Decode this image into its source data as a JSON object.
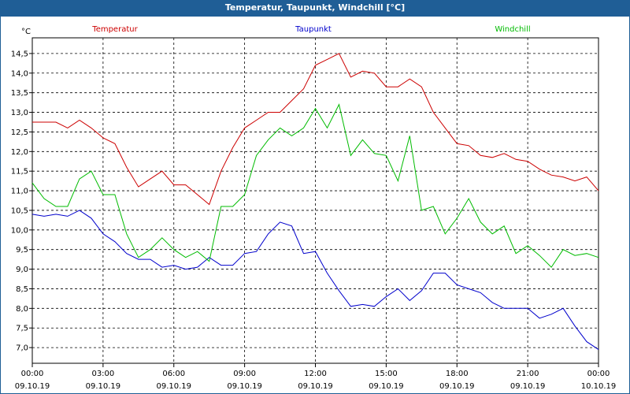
{
  "window": {
    "title": "Temperatur, Taupunkt, Windchill [°C]"
  },
  "chart_data": {
    "type": "line",
    "title": "Temperatur, Taupunkt, Windchill [°C]",
    "ylabel": "°C",
    "xlabel": "",
    "ylim": [
      6.6,
      14.9
    ],
    "xlim": [
      0,
      24
    ],
    "grid": true,
    "legend_placement": "top",
    "y_ticks": [
      "7,0",
      "7,5",
      "8,0",
      "8,5",
      "9,0",
      "9,5",
      "10,0",
      "10,5",
      "11,0",
      "11,5",
      "12,0",
      "12,5",
      "13,0",
      "13,5",
      "14,0",
      "14,5"
    ],
    "x_ticks": [
      {
        "time": "00:00",
        "date": "09.10.19"
      },
      {
        "time": "03:00",
        "date": "09.10.19"
      },
      {
        "time": "06:00",
        "date": "09.10.19"
      },
      {
        "time": "09:00",
        "date": "09.10.19"
      },
      {
        "time": "12:00",
        "date": "09.10.19"
      },
      {
        "time": "15:00",
        "date": "09.10.19"
      },
      {
        "time": "18:00",
        "date": "09.10.19"
      },
      {
        "time": "21:00",
        "date": "09.10.19"
      },
      {
        "time": "00:00",
        "date": "10.10.19"
      }
    ],
    "x_unit_note": "hours",
    "series": [
      {
        "name": "Temperatur",
        "color": "#cc0000",
        "x": [
          0,
          0.5,
          1,
          1.5,
          2,
          2.5,
          3,
          3.5,
          4,
          4.5,
          5,
          5.5,
          6,
          6.5,
          7,
          7.5,
          8,
          8.5,
          9,
          9.5,
          10,
          10.5,
          11,
          11.5,
          12,
          12.5,
          13,
          13.5,
          14,
          14.5,
          15,
          15.5,
          16,
          16.5,
          17,
          17.5,
          18,
          18.5,
          19,
          19.5,
          20,
          20.5,
          21,
          21.5,
          22,
          22.5,
          23,
          23.5,
          24
        ],
        "values": [
          12.75,
          12.75,
          12.75,
          12.6,
          12.8,
          12.6,
          12.35,
          12.2,
          11.6,
          11.1,
          11.3,
          11.5,
          11.15,
          11.15,
          10.9,
          10.65,
          11.5,
          12.1,
          12.6,
          12.8,
          13.0,
          13.0,
          13.3,
          13.6,
          14.2,
          14.35,
          14.5,
          13.9,
          14.05,
          14.0,
          13.65,
          13.65,
          13.85,
          13.65,
          13.0,
          12.6,
          12.2,
          12.15,
          11.9,
          11.85,
          11.95,
          11.8,
          11.75,
          11.55,
          11.4,
          11.35,
          11.25,
          11.35,
          11.0
        ]
      },
      {
        "name": "Taupunkt",
        "color": "#0000cc",
        "x": [
          0,
          0.5,
          1,
          1.5,
          2,
          2.5,
          3,
          3.5,
          4,
          4.5,
          5,
          5.5,
          6,
          6.5,
          7,
          7.5,
          8,
          8.5,
          9,
          9.5,
          10,
          10.5,
          11,
          11.5,
          12,
          12.5,
          13,
          13.5,
          14,
          14.5,
          15,
          15.5,
          16,
          16.5,
          17,
          17.5,
          18,
          18.5,
          19,
          19.5,
          20,
          20.5,
          21,
          21.5,
          22,
          22.5,
          23,
          23.5,
          24
        ],
        "values": [
          10.4,
          10.35,
          10.4,
          10.35,
          10.5,
          10.3,
          9.9,
          9.7,
          9.4,
          9.25,
          9.25,
          9.05,
          9.1,
          9.0,
          9.05,
          9.3,
          9.1,
          9.1,
          9.4,
          9.45,
          9.9,
          10.2,
          10.1,
          9.4,
          9.45,
          8.9,
          8.45,
          8.05,
          8.1,
          8.05,
          8.3,
          8.5,
          8.2,
          8.45,
          8.9,
          8.9,
          8.6,
          8.5,
          8.4,
          8.15,
          8.0,
          8.0,
          8.0,
          7.75,
          7.85,
          8.0,
          7.55,
          7.15,
          6.95
        ]
      },
      {
        "name": "Windchill",
        "color": "#00bb00",
        "x": [
          0,
          0.5,
          1,
          1.5,
          2,
          2.5,
          3,
          3.5,
          4,
          4.5,
          5,
          5.5,
          6,
          6.5,
          7,
          7.5,
          8,
          8.5,
          9,
          9.5,
          10,
          10.5,
          11,
          11.5,
          12,
          12.5,
          13,
          13.5,
          14,
          14.5,
          15,
          15.5,
          16,
          16.5,
          17,
          17.5,
          18,
          18.5,
          19,
          19.5,
          20,
          20.5,
          21,
          21.5,
          22,
          22.5,
          23,
          23.5,
          24
        ],
        "values": [
          11.2,
          10.8,
          10.6,
          10.6,
          11.3,
          11.5,
          10.9,
          10.9,
          9.9,
          9.3,
          9.5,
          9.8,
          9.5,
          9.3,
          9.45,
          9.2,
          10.6,
          10.6,
          10.9,
          11.9,
          12.3,
          12.6,
          12.4,
          12.6,
          13.1,
          12.6,
          13.2,
          11.9,
          12.3,
          11.95,
          11.9,
          11.25,
          12.4,
          10.5,
          10.6,
          9.9,
          10.3,
          10.8,
          10.2,
          9.9,
          10.1,
          9.4,
          9.6,
          9.35,
          9.05,
          9.5,
          9.35,
          9.4,
          9.3
        ]
      }
    ]
  }
}
